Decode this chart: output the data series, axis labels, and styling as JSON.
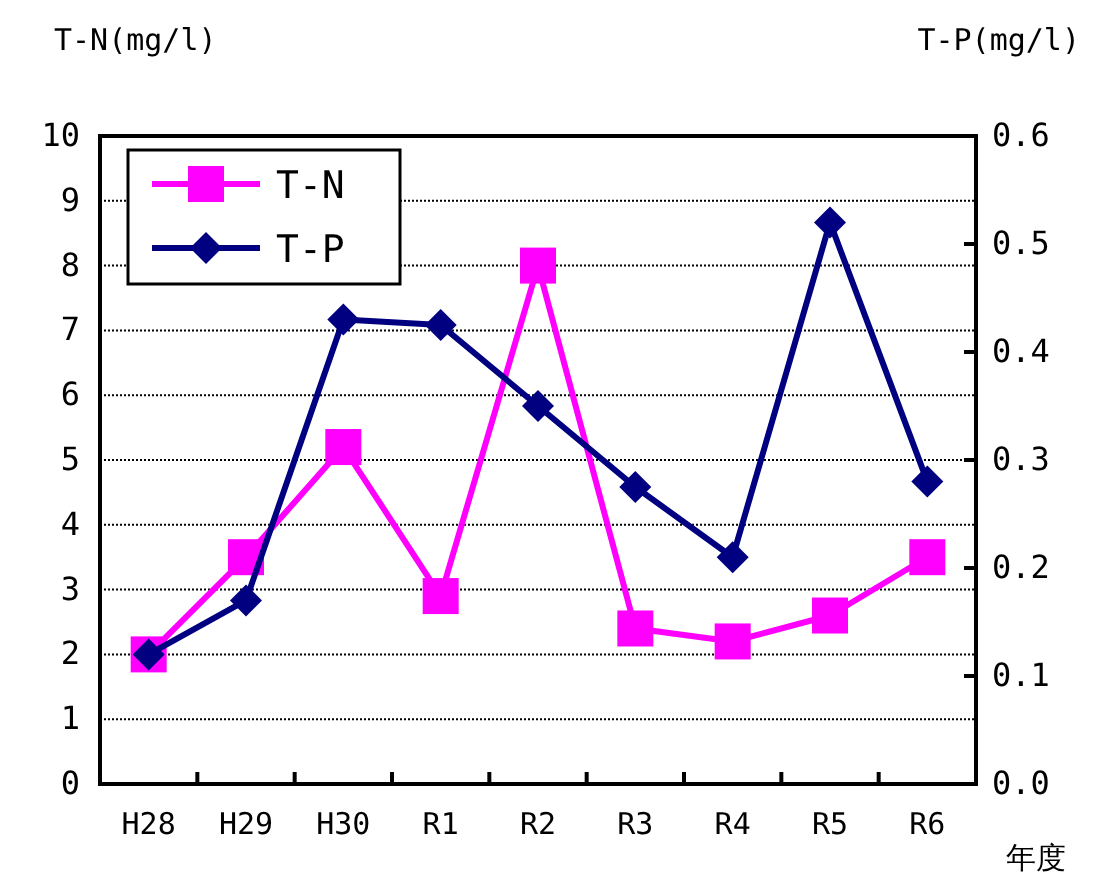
{
  "chart_data": {
    "type": "line",
    "xlabel": "年度",
    "ylabel": "T-N(mg/l)",
    "y2label": "T-P(mg/l)",
    "categories": [
      "H28",
      "H29",
      "H30",
      "R1",
      "R2",
      "R3",
      "R4",
      "R5",
      "R6"
    ],
    "series": [
      {
        "name": "T-N",
        "color": "#ff00ff",
        "marker": "square",
        "values": [
          2.0,
          3.5,
          5.2,
          2.9,
          8.0,
          2.4,
          2.2,
          2.6,
          3.5
        ]
      },
      {
        "name": "T-P",
        "color": "#000080",
        "marker": "diamond",
        "axis": "y2",
        "values": [
          0.12,
          0.17,
          0.43,
          0.425,
          0.35,
          0.275,
          0.21,
          0.52,
          0.28
        ]
      }
    ],
    "ylim": [
      0,
      10
    ],
    "yticks": [
      0,
      1,
      2,
      3,
      4,
      5,
      6,
      7,
      8,
      9,
      10
    ],
    "y2lim": [
      0,
      0.6
    ],
    "y2ticks": [
      {
        "value": 0,
        "label": "0.0"
      },
      {
        "value": 0.1,
        "label": "0.1"
      },
      {
        "value": 0.2,
        "label": "0.2"
      },
      {
        "value": 0.3,
        "label": "0.3"
      },
      {
        "value": 0.4,
        "label": "0.4"
      },
      {
        "value": 0.5,
        "label": "0.5"
      },
      {
        "value": 0.6,
        "label": "0.6"
      }
    ],
    "grid": "y",
    "legend": "top left",
    "line_style": "solid"
  }
}
